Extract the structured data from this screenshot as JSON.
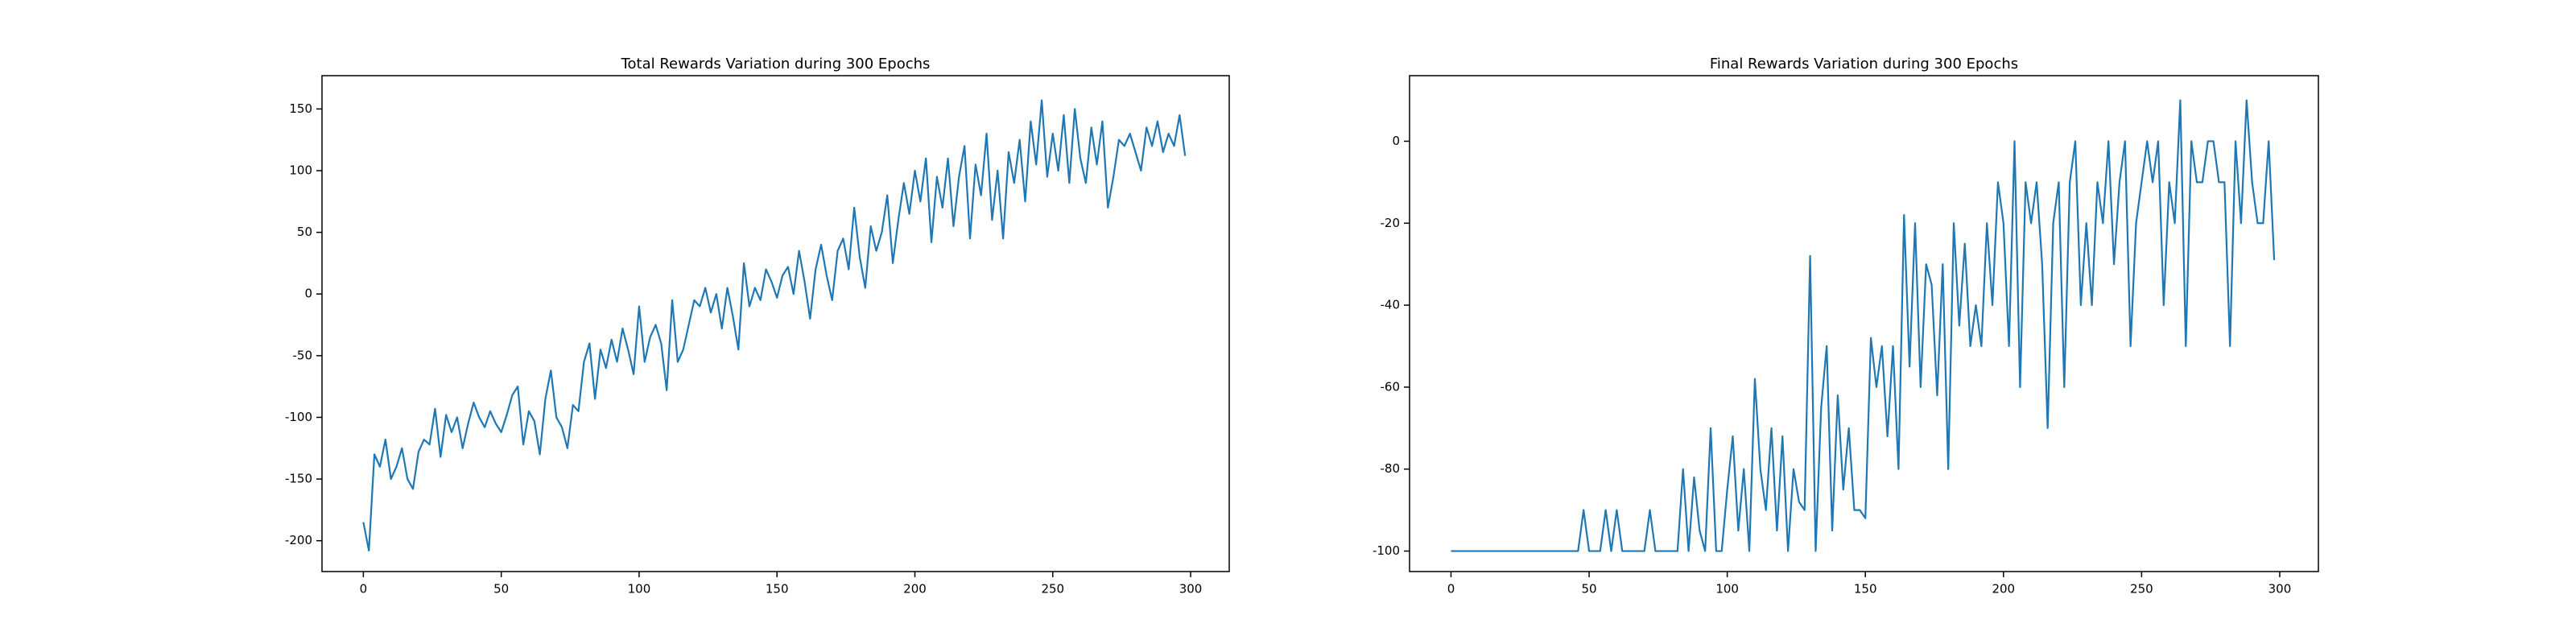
{
  "chart_data": [
    {
      "type": "line",
      "title": "Total Rewards Variation during 300 Epochs",
      "color": "#1f77b4",
      "x": [
        0,
        2,
        4,
        6,
        8,
        10,
        12,
        14,
        16,
        18,
        20,
        22,
        24,
        26,
        28,
        30,
        32,
        34,
        36,
        38,
        40,
        42,
        44,
        46,
        48,
        50,
        52,
        54,
        56,
        58,
        60,
        62,
        64,
        66,
        68,
        70,
        72,
        74,
        76,
        78,
        80,
        82,
        84,
        86,
        88,
        90,
        92,
        94,
        96,
        98,
        100,
        102,
        104,
        106,
        108,
        110,
        112,
        114,
        116,
        118,
        120,
        122,
        124,
        126,
        128,
        130,
        132,
        134,
        136,
        138,
        140,
        142,
        144,
        146,
        148,
        150,
        152,
        154,
        156,
        158,
        160,
        162,
        164,
        166,
        168,
        170,
        172,
        174,
        176,
        178,
        180,
        182,
        184,
        186,
        188,
        190,
        192,
        194,
        196,
        198,
        200,
        202,
        204,
        206,
        208,
        210,
        212,
        214,
        216,
        218,
        220,
        222,
        224,
        226,
        228,
        230,
        232,
        234,
        236,
        238,
        240,
        242,
        244,
        246,
        248,
        250,
        252,
        254,
        256,
        258,
        260,
        262,
        264,
        266,
        268,
        270,
        272,
        274,
        276,
        278,
        280,
        282,
        284,
        286,
        288,
        290,
        292,
        294,
        296,
        298
      ],
      "values": [
        -185,
        -208,
        -130,
        -140,
        -118,
        -150,
        -140,
        -125,
        -150,
        -158,
        -128,
        -118,
        -122,
        -93,
        -132,
        -98,
        -112,
        -100,
        -125,
        -105,
        -88,
        -100,
        -108,
        -95,
        -105,
        -112,
        -98,
        -82,
        -75,
        -122,
        -95,
        -103,
        -130,
        -85,
        -62,
        -100,
        -108,
        -125,
        -90,
        -95,
        -55,
        -40,
        -85,
        -45,
        -60,
        -37,
        -55,
        -28,
        -45,
        -65,
        -10,
        -55,
        -35,
        -25,
        -40,
        -78,
        -5,
        -55,
        -45,
        -25,
        -5,
        -10,
        5,
        -15,
        0,
        -28,
        5,
        -18,
        -45,
        25,
        -10,
        5,
        -5,
        20,
        10,
        -3,
        15,
        22,
        0,
        35,
        10,
        -20,
        20,
        40,
        15,
        -5,
        35,
        45,
        20,
        70,
        30,
        5,
        55,
        35,
        50,
        80,
        25,
        60,
        90,
        65,
        100,
        75,
        110,
        42,
        95,
        70,
        110,
        55,
        95,
        120,
        45,
        105,
        80,
        130,
        60,
        100,
        45,
        115,
        90,
        125,
        75,
        140,
        105,
        157,
        95,
        130,
        100,
        145,
        90,
        150,
        110,
        90,
        135,
        105,
        140,
        70,
        95,
        125,
        120,
        130,
        115,
        100,
        135,
        120,
        140,
        115,
        130,
        120,
        145,
        112
      ],
      "xlim": [
        -15,
        314
      ],
      "ylim": [
        -225,
        177
      ],
      "xticks": [
        0,
        50,
        100,
        150,
        200,
        250,
        300
      ],
      "yticks": [
        -200,
        -150,
        -100,
        -50,
        0,
        50,
        100,
        150
      ]
    },
    {
      "type": "line",
      "title": "Final Rewards Variation during 300 Epochs",
      "color": "#1f77b4",
      "x": [
        0,
        2,
        4,
        6,
        8,
        10,
        12,
        14,
        16,
        18,
        20,
        22,
        24,
        26,
        28,
        30,
        32,
        34,
        36,
        38,
        40,
        42,
        44,
        46,
        48,
        50,
        52,
        54,
        56,
        58,
        60,
        62,
        64,
        66,
        68,
        70,
        72,
        74,
        76,
        78,
        80,
        82,
        84,
        86,
        88,
        90,
        92,
        94,
        96,
        98,
        100,
        102,
        104,
        106,
        108,
        110,
        112,
        114,
        116,
        118,
        120,
        122,
        124,
        126,
        128,
        130,
        132,
        134,
        136,
        138,
        140,
        142,
        144,
        146,
        148,
        150,
        152,
        154,
        156,
        158,
        160,
        162,
        164,
        166,
        168,
        170,
        172,
        174,
        176,
        178,
        180,
        182,
        184,
        186,
        188,
        190,
        192,
        194,
        196,
        198,
        200,
        202,
        204,
        206,
        208,
        210,
        212,
        214,
        216,
        218,
        220,
        222,
        224,
        226,
        228,
        230,
        232,
        234,
        236,
        238,
        240,
        242,
        244,
        246,
        248,
        250,
        252,
        254,
        256,
        258,
        260,
        262,
        264,
        266,
        268,
        270,
        272,
        274,
        276,
        278,
        280,
        282,
        284,
        286,
        288,
        290,
        292,
        294,
        296,
        298
      ],
      "values": [
        -100,
        -100,
        -100,
        -100,
        -100,
        -100,
        -100,
        -100,
        -100,
        -100,
        -100,
        -100,
        -100,
        -100,
        -100,
        -100,
        -100,
        -100,
        -100,
        -100,
        -100,
        -100,
        -100,
        -100,
        -90,
        -100,
        -100,
        -100,
        -90,
        -100,
        -90,
        -100,
        -100,
        -100,
        -100,
        -100,
        -90,
        -100,
        -100,
        -100,
        -100,
        -100,
        -80,
        -100,
        -82,
        -95,
        -100,
        -70,
        -100,
        -100,
        -85,
        -72,
        -95,
        -80,
        -100,
        -58,
        -80,
        -90,
        -70,
        -95,
        -72,
        -100,
        -80,
        -88,
        -90,
        -28,
        -100,
        -65,
        -50,
        -95,
        -62,
        -85,
        -70,
        -90,
        -90,
        -92,
        -48,
        -60,
        -50,
        -72,
        -50,
        -80,
        -18,
        -55,
        -20,
        -60,
        -30,
        -35,
        -62,
        -30,
        -80,
        -20,
        -45,
        -25,
        -50,
        -40,
        -50,
        -20,
        -40,
        -10,
        -20,
        -50,
        0,
        -60,
        -10,
        -20,
        -10,
        -30,
        -70,
        -20,
        -10,
        -60,
        -10,
        0,
        -40,
        -20,
        -40,
        -10,
        -20,
        0,
        -30,
        -10,
        0,
        -50,
        -20,
        -10,
        0,
        -10,
        0,
        -40,
        -10,
        -20,
        10,
        -50,
        0,
        -10,
        -10,
        0,
        0,
        -10,
        -10,
        -50,
        0,
        -20,
        10,
        -10,
        -20,
        -20,
        0,
        -29
      ],
      "xlim": [
        -15,
        314
      ],
      "ylim": [
        -105,
        16
      ],
      "xticks": [
        0,
        50,
        100,
        150,
        200,
        250,
        300
      ],
      "yticks": [
        -100,
        -80,
        -60,
        -40,
        -20,
        0
      ]
    }
  ]
}
